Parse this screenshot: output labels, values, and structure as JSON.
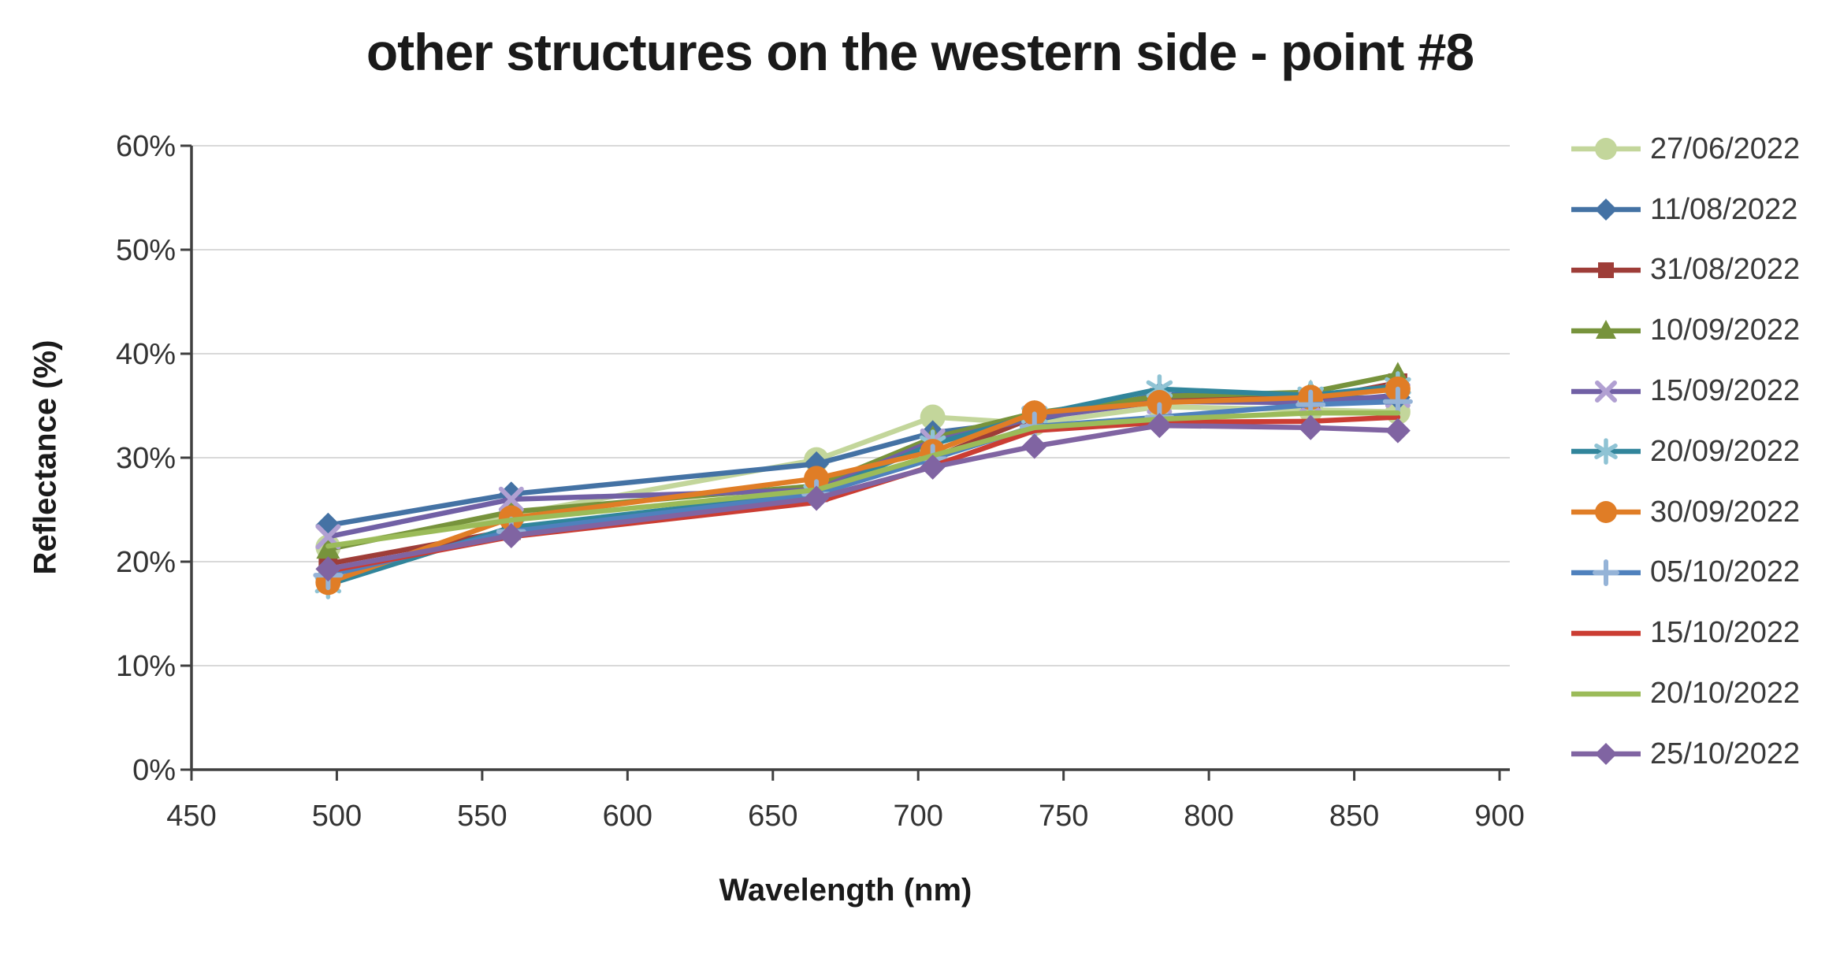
{
  "title": "other structures on the western side - point #8",
  "chart_data": {
    "type": "line",
    "title": "other structures on the western side - point #8",
    "xlabel": "Wavelength (nm)",
    "ylabel": "Reflectance (%)",
    "xlim": [
      450,
      900
    ],
    "ylim": [
      0,
      60
    ],
    "x_ticks": [
      "450",
      "500",
      "550",
      "600",
      "650",
      "700",
      "750",
      "800",
      "850",
      "900"
    ],
    "y_ticks": [
      "0%",
      "10%",
      "20%",
      "30%",
      "40%",
      "50%",
      "60%"
    ],
    "grid": "horizontal-only",
    "legend_position": "right",
    "x": [
      497,
      560,
      665,
      705,
      740,
      783,
      835,
      865
    ],
    "series": [
      {
        "name": "27/06/2022",
        "color": "#c3d69b",
        "marker": "circle",
        "marker_color": "#c3d69b",
        "values": [
          21.4,
          24.5,
          29.8,
          33.9,
          33.3,
          34.9,
          34.6,
          34.4
        ]
      },
      {
        "name": "11/08/2022",
        "color": "#4472a4",
        "marker": "diamond",
        "marker_color": "#4472a4",
        "values": [
          23.5,
          26.5,
          29.4,
          32.4,
          33.6,
          36.1,
          35.7,
          35.8
        ]
      },
      {
        "name": "31/08/2022",
        "color": "#9e3d38",
        "marker": "square",
        "marker_color": "#9e3d38",
        "values": [
          19.8,
          23.0,
          26.8,
          30.0,
          33.9,
          35.8,
          35.6,
          37.2
        ]
      },
      {
        "name": "10/09/2022",
        "color": "#77933c",
        "marker": "triangle",
        "marker_color": "#77933c",
        "values": [
          21.2,
          24.8,
          27.3,
          31.9,
          34.3,
          35.9,
          36.3,
          38.0
        ]
      },
      {
        "name": "15/09/2022",
        "color": "#7160a5",
        "marker": "x",
        "marker_color": "#b1a0d2",
        "values": [
          22.4,
          26.0,
          26.9,
          31.6,
          33.8,
          35.4,
          35.3,
          36.0
        ]
      },
      {
        "name": "20/09/2022",
        "color": "#31859b",
        "marker": "asterisk",
        "marker_color": "#8fc3d4",
        "values": [
          17.8,
          23.3,
          26.6,
          31.3,
          34.1,
          36.6,
          36.0,
          36.9
        ]
      },
      {
        "name": "30/09/2022",
        "color": "#e07d26",
        "marker": "circle",
        "marker_color": "#e07d26",
        "values": [
          18.0,
          24.2,
          28.0,
          30.6,
          34.3,
          35.3,
          35.8,
          36.6
        ]
      },
      {
        "name": "05/10/2022",
        "color": "#4f81bd",
        "marker": "plus",
        "marker_color": "#95b3d7",
        "values": [
          18.7,
          22.9,
          26.5,
          29.9,
          33.0,
          33.9,
          35.1,
          35.4
        ]
      },
      {
        "name": "15/10/2022",
        "color": "#cb3d33",
        "marker": "none",
        "marker_color": "#cb3d33",
        "values": [
          19.1,
          22.4,
          25.7,
          29.2,
          32.6,
          33.4,
          33.5,
          33.9
        ]
      },
      {
        "name": "20/10/2022",
        "color": "#9bbb59",
        "marker": "none",
        "marker_color": "#9bbb59",
        "values": [
          21.5,
          24.0,
          26.9,
          30.2,
          32.9,
          33.7,
          34.3,
          34.3
        ]
      },
      {
        "name": "25/10/2022",
        "color": "#8064a2",
        "marker": "diamond",
        "marker_color": "#8064a2",
        "values": [
          19.3,
          22.5,
          26.1,
          29.1,
          31.1,
          33.1,
          32.9,
          32.6
        ]
      }
    ]
  },
  "colors": {
    "grid": "#d9d9d9",
    "axis": "#404040",
    "tick_label": "#333333",
    "title": "#1a1a1a",
    "legend_text": "#3a3a3a",
    "background": "#ffffff"
  }
}
